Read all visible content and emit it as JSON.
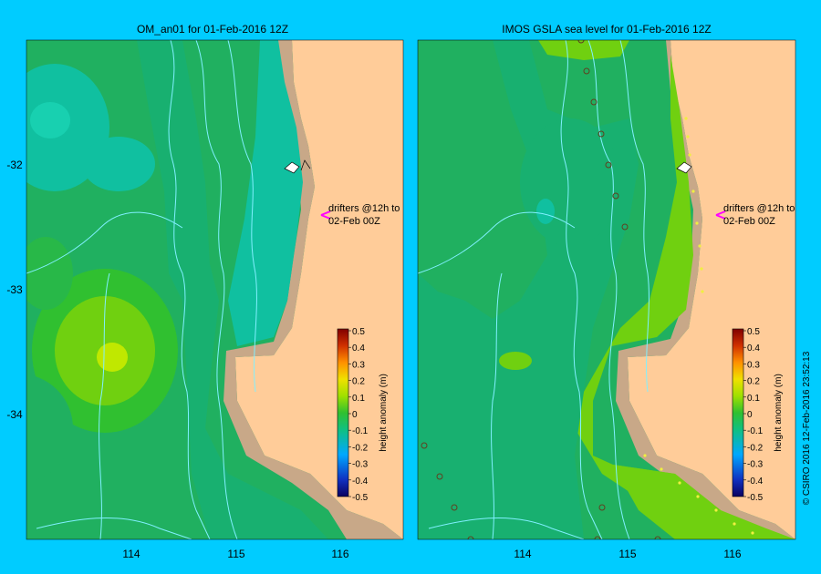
{
  "chart_data": [
    {
      "type": "heatmap",
      "title": "OM_an01  for 01-Feb-2016 12Z",
      "x_ticks": [
        "114",
        "115",
        "116"
      ],
      "y_ticks": [
        "-32",
        "-33",
        "-34"
      ],
      "xlim": [
        113.0,
        116.6
      ],
      "ylim": [
        -35.0,
        -31.0
      ],
      "annotation": [
        "drifters @12h to",
        "02-Feb 00Z"
      ],
      "colorbar": {
        "label": "height anomaly (m)",
        "ticks": [
          "0.5",
          "0.4",
          "0.3",
          "0.2",
          "0.1",
          "0",
          "-0.1",
          "-0.2",
          "-0.3",
          "-0.4",
          "-0.5"
        ],
        "range": [
          -0.5,
          0.5
        ]
      },
      "field_notes": "mostly -0.1 to -0.2 m; high near 113.8E -33.5S (~0.05 m)"
    },
    {
      "type": "heatmap",
      "title": "IMOS GSLA sea level  for 01-Feb-2016 12Z",
      "x_ticks": [
        "114",
        "115",
        "116"
      ],
      "xlim": [
        113.0,
        116.6
      ],
      "ylim": [
        -35.0,
        -31.0
      ],
      "annotation": [
        "drifters @12h to",
        "02-Feb 00Z"
      ],
      "colorbar": {
        "label": "height anomaly (m)",
        "ticks": [
          "0.5",
          "0.4",
          "0.3",
          "0.2",
          "0.1",
          "0",
          "-0.1",
          "-0.2",
          "-0.3",
          "-0.4",
          "-0.5"
        ],
        "range": [
          -0.5,
          0.5
        ]
      },
      "field_notes": "mostly -0.05 to -0.1 m; positive band along shelf near 115-116E"
    }
  ],
  "credit": "© CSIRO 2016   12-Feb-2016 23:52:13",
  "colors": {
    "background": "#00ccff",
    "land": "#ffcc99",
    "shelf": "#c8a888",
    "drifter_arrow": "#ff00ff"
  }
}
